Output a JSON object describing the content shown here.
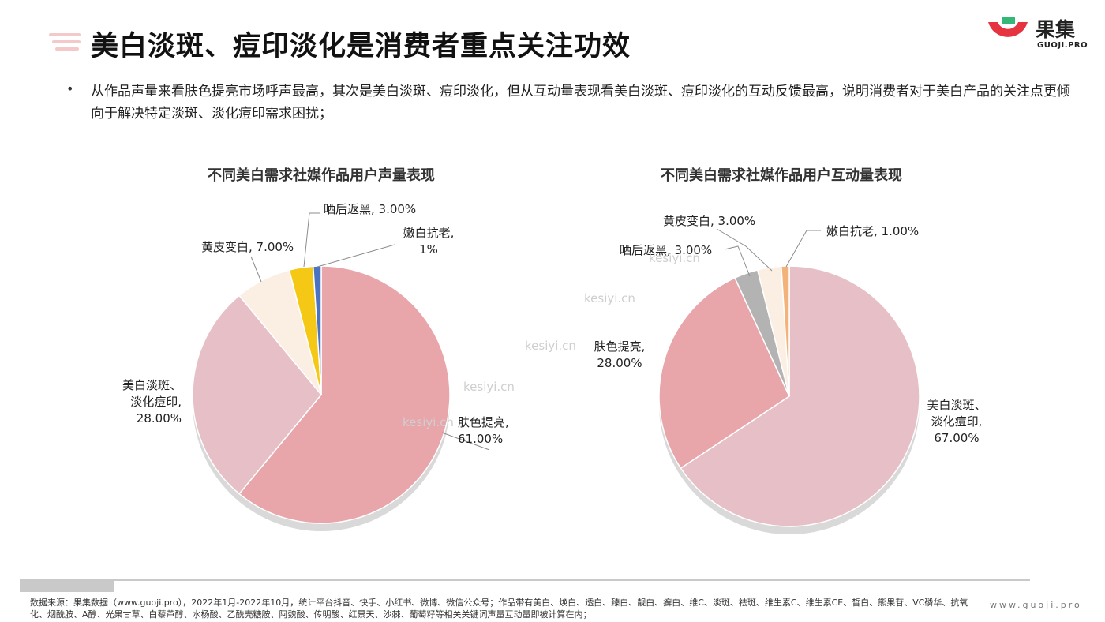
{
  "header": {
    "title": "美白淡斑、痘印淡化是消费者重点关注功效",
    "logo_cn": "果集",
    "logo_en": "GUOJI.PRO"
  },
  "summary": {
    "bullet": "•",
    "text": "从作品声量来看肤色提亮市场呼声最高，其次是美白淡斑、痘印淡化，但从互动量表现看美白淡斑、痘印淡化的互动反馈最高，说明消费者对于美白产品的关注点更倾向于解决特定淡斑、淡化痘印需求困扰；"
  },
  "watermark": "kesiyi.cn",
  "chart_data": [
    {
      "type": "pie",
      "title": "不同美白需求社媒作品用户声量表现",
      "slices": [
        {
          "name": "肤色提亮",
          "value": 61.0,
          "label": [
            "肤色提亮,",
            "61.00%"
          ],
          "color": "#e8a6aa"
        },
        {
          "name": "美白淡斑、淡化痘印",
          "value": 28.0,
          "label": [
            "美白淡斑、",
            "淡化痘印,",
            "28.00%"
          ],
          "color": "#e6c0c6"
        },
        {
          "name": "黄皮变白",
          "value": 7.0,
          "label": [
            "黄皮变白, 7.00%"
          ],
          "color": "#fbefe3"
        },
        {
          "name": "晒后返黑",
          "value": 3.0,
          "label": [
            "晒后返黑, 3.00%"
          ],
          "color": "#f5c816"
        },
        {
          "name": "嫩白抗老",
          "value": 1.0,
          "label": [
            "嫩白抗老,",
            "1%"
          ],
          "color": "#4a74c2"
        }
      ]
    },
    {
      "type": "pie",
      "title": "不同美白需求社媒作品用户互动量表现",
      "slices": [
        {
          "name": "美白淡斑、淡化痘印",
          "value": 67.0,
          "label": [
            "美白淡斑、",
            "淡化痘印,",
            "67.00%"
          ],
          "color": "#e6c0c6"
        },
        {
          "name": "肤色提亮",
          "value": 28.0,
          "label": [
            "肤色提亮,",
            "28.00%"
          ],
          "color": "#e8a6aa"
        },
        {
          "name": "晒后返黑",
          "value": 3.0,
          "label": [
            "晒后返黑, 3.00%"
          ],
          "color": "#b3b3b3"
        },
        {
          "name": "黄皮变白",
          "value": 3.0,
          "label": [
            "黄皮变白, 3.00%"
          ],
          "color": "#fbefe3"
        },
        {
          "name": "嫩白抗老",
          "value": 1.0,
          "label": [
            "嫩白抗老, 1.00%"
          ],
          "color": "#f2b279"
        }
      ]
    }
  ],
  "footer": {
    "note": "数据来源：果集数据（www.guoji.pro），2022年1月-2022年10月，统计平台抖音、快手、小红书、微博、微信公众号；作品带有美白、焕白、透白、臻白、靓白、癣白、维C、淡斑、祛斑、维生素C、维生素CE、皙白、熊果苷、VC磷华、抗氧化、烟酰胺、A醇、光果甘草、白藜芦醇、水杨酸、乙酰壳糖胺、阿魏酸、传明酸、红景天、沙棘、葡萄籽等相关关键词声量互动量即被计算在内；",
    "site": "www.guoji.pro"
  }
}
